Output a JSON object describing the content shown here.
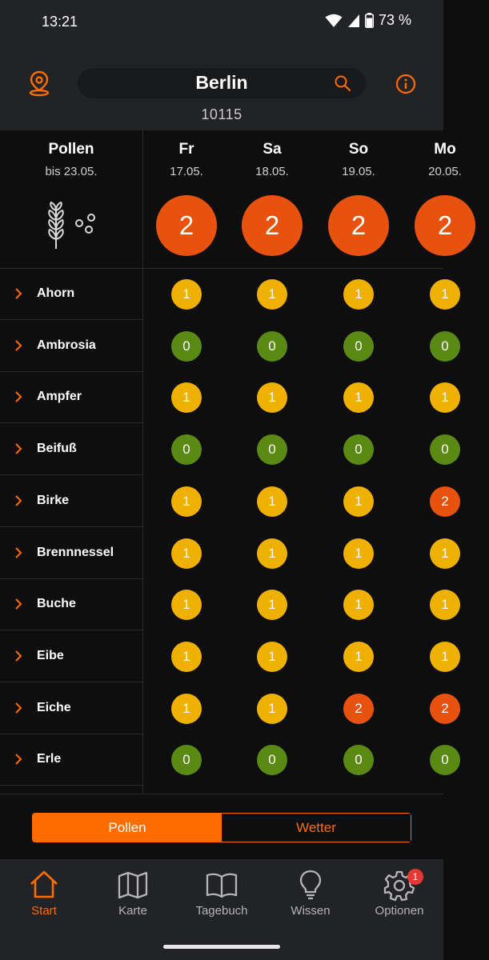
{
  "status": {
    "time": "13:21",
    "battery": "73 %"
  },
  "header": {
    "city": "Berlin",
    "zip": "10115"
  },
  "table": {
    "title": "Pollen",
    "subtitle": "bis 23.05.",
    "days": [
      {
        "name": "Fr",
        "date": "17.05.",
        "total": "2"
      },
      {
        "name": "Sa",
        "date": "18.05.",
        "total": "2"
      },
      {
        "name": "So",
        "date": "19.05.",
        "total": "2"
      },
      {
        "name": "Mo",
        "date": "20.05.",
        "total": "2"
      }
    ],
    "rows": [
      {
        "name": "Ahorn",
        "values": [
          "1",
          "1",
          "1",
          "1"
        ]
      },
      {
        "name": "Ambrosia",
        "values": [
          "0",
          "0",
          "0",
          "0"
        ]
      },
      {
        "name": "Ampfer",
        "values": [
          "1",
          "1",
          "1",
          "1"
        ]
      },
      {
        "name": "Beifuß",
        "values": [
          "0",
          "0",
          "0",
          "0"
        ]
      },
      {
        "name": "Birke",
        "values": [
          "1",
          "1",
          "1",
          "2"
        ]
      },
      {
        "name": "Brennnessel",
        "values": [
          "1",
          "1",
          "1",
          "1"
        ]
      },
      {
        "name": "Buche",
        "values": [
          "1",
          "1",
          "1",
          "1"
        ]
      },
      {
        "name": "Eibe",
        "values": [
          "1",
          "1",
          "1",
          "1"
        ]
      },
      {
        "name": "Eiche",
        "values": [
          "1",
          "1",
          "2",
          "2"
        ]
      },
      {
        "name": "Erle",
        "values": [
          "0",
          "0",
          "0",
          "0"
        ]
      }
    ]
  },
  "levelColors": {
    "0": "#5a8a13",
    "1": "#f0b000",
    "2": "#e8520f"
  },
  "segment": {
    "pollen": "Pollen",
    "wetter": "Wetter"
  },
  "nav": {
    "start": "Start",
    "karte": "Karte",
    "tagebuch": "Tagebuch",
    "wissen": "Wissen",
    "optionen": "Optionen",
    "optionen_badge": "1"
  },
  "accent": "#ff6d00"
}
